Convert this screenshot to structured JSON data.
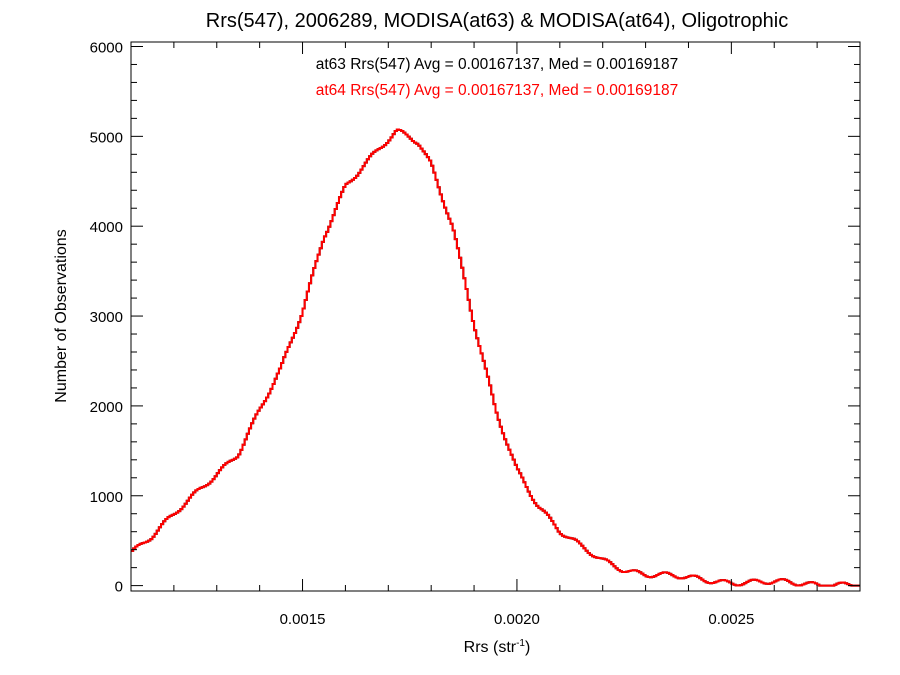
{
  "chart_data": {
    "type": "line",
    "title": "Rrs(547), 2006289, MODISA(at63) & MODISA(at64), Oligotrophic",
    "xlabel": "Rrs (str",
    "xlabel_sup": "-1",
    "xlabel_end": ")",
    "ylabel": "Number of Observations",
    "xlim": [
      0.0011,
      0.0028
    ],
    "ylim": [
      -60,
      6050
    ],
    "x_ticks": [
      0.0015,
      0.002,
      0.0025
    ],
    "x_tick_labels": [
      "0.0015",
      "0.0020",
      "0.0025"
    ],
    "y_ticks": [
      0,
      1000,
      2000,
      3000,
      4000,
      5000,
      6000
    ],
    "y_tick_labels": [
      "0",
      "1000",
      "2000",
      "3000",
      "4000",
      "5000",
      "6000"
    ],
    "grid": false,
    "legend_placement": "top-center",
    "annotations": [
      {
        "text": "at63 Rrs(547) Avg = 0.00167137, Med = 0.00169187",
        "color": "#000000"
      },
      {
        "text": "at64 Rrs(547) Avg = 0.00167137, Med = 0.00169187",
        "color": "#ff0000"
      }
    ],
    "bin_width": 5e-06,
    "series": [
      {
        "name": "at63",
        "color": "#000000",
        "x": [
          0.0011,
          0.00115,
          0.0012,
          0.00125,
          0.0013,
          0.00135,
          0.0014,
          0.00145,
          0.0015,
          0.00155,
          0.0016,
          0.00165,
          0.0017,
          0.00172,
          0.00175,
          0.00177,
          0.0018,
          0.00185,
          0.0019,
          0.00195,
          0.002,
          0.00205,
          0.0021,
          0.00215,
          0.0022,
          0.00225,
          0.0023,
          0.0024,
          0.0025,
          0.0026,
          0.0027,
          0.0028
        ],
        "y": [
          380,
          560,
          780,
          1010,
          1250,
          1480,
          1950,
          2400,
          3050,
          3900,
          4450,
          4700,
          4950,
          5050,
          5000,
          4950,
          4700,
          4000,
          2900,
          1950,
          1300,
          900,
          600,
          420,
          280,
          190,
          130,
          80,
          45,
          30,
          20,
          15
        ]
      },
      {
        "name": "at64",
        "color": "#ff0000",
        "x": [
          0.0011,
          0.00115,
          0.0012,
          0.00125,
          0.0013,
          0.00135,
          0.0014,
          0.00145,
          0.0015,
          0.00155,
          0.0016,
          0.00165,
          0.0017,
          0.00172,
          0.00175,
          0.00177,
          0.0018,
          0.00185,
          0.0019,
          0.00195,
          0.002,
          0.00205,
          0.0021,
          0.00215,
          0.0022,
          0.00225,
          0.0023,
          0.0024,
          0.0025,
          0.0026,
          0.0027,
          0.0028
        ],
        "y": [
          380,
          560,
          780,
          1010,
          1250,
          1480,
          1950,
          2400,
          3050,
          3900,
          4450,
          4700,
          4950,
          5050,
          5000,
          4950,
          4700,
          4000,
          2900,
          1950,
          1300,
          900,
          600,
          420,
          280,
          190,
          130,
          80,
          45,
          30,
          20,
          15
        ]
      }
    ]
  }
}
